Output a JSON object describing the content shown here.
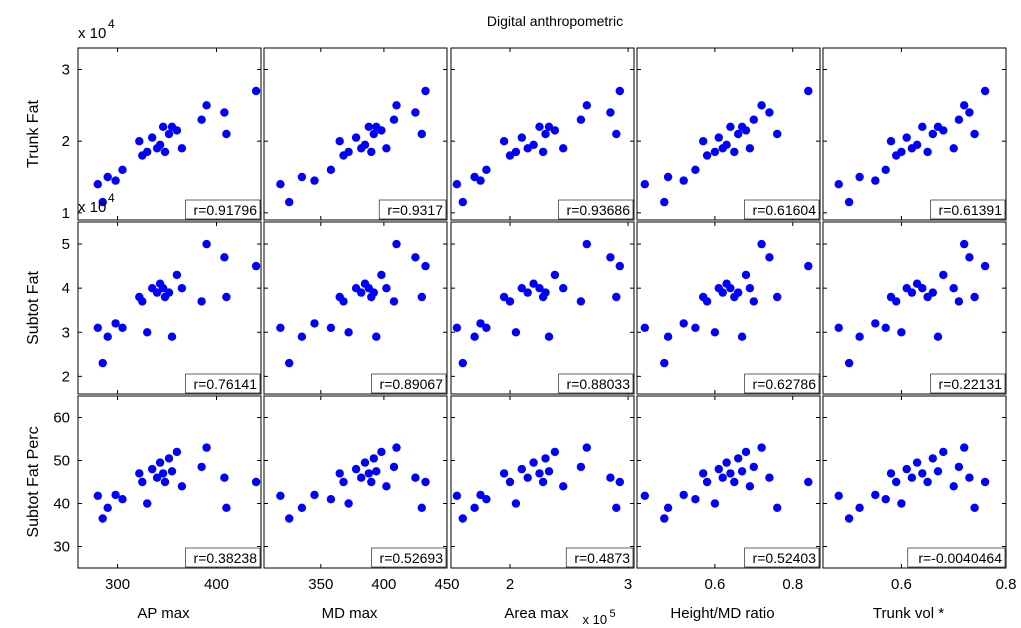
{
  "title": "Digital anthropometric",
  "colors": {
    "marker": "#0000ff",
    "axes": "#000000",
    "background": "#ffffff"
  },
  "chart_data": {
    "type": "scatter",
    "grid": false,
    "legend": "none",
    "rows": [
      {
        "ylabel": "Trunk Fat",
        "ylim": [
          0.9,
          3.3
        ],
        "yticks": [
          "1",
          "2",
          "3"
        ],
        "ytick_values": [
          1,
          2,
          3
        ],
        "exponent": "4"
      },
      {
        "ylabel": "Subtot Fat",
        "ylim": [
          1.6,
          5.5
        ],
        "yticks": [
          "2",
          "3",
          "4",
          "5"
        ],
        "ytick_values": [
          2,
          3,
          4,
          5
        ],
        "exponent": "4"
      },
      {
        "ylabel": "Subtot Fat Perc",
        "ylim": [
          25,
          65
        ],
        "yticks": [
          "30",
          "40",
          "50",
          "60"
        ],
        "ytick_values": [
          30,
          40,
          50,
          60
        ],
        "exponent": ""
      }
    ],
    "columns": [
      {
        "xlabel": "AP max",
        "xlim": [
          260,
          445
        ],
        "xticks": [
          "300",
          "400"
        ],
        "xtick_values": [
          300,
          400
        ],
        "exponent": "",
        "x": [
          280,
          285,
          290,
          298,
          305,
          322,
          325,
          330,
          335,
          340,
          343,
          346,
          348,
          352,
          355,
          360,
          365,
          385,
          390,
          408,
          410,
          440
        ]
      },
      {
        "xlabel": "MD max",
        "xlim": [
          305,
          450
        ],
        "xticks": [
          "350",
          "400",
          "450"
        ],
        "xtick_values": [
          350,
          400,
          450
        ],
        "exponent": "",
        "x": [
          318,
          325,
          335,
          345,
          358,
          365,
          368,
          372,
          378,
          382,
          385,
          388,
          390,
          392,
          394,
          398,
          402,
          408,
          410,
          425,
          430,
          433
        ]
      },
      {
        "xlabel": "Area max",
        "xlim": [
          1.5,
          3.05
        ],
        "xticks": [
          "2",
          "3"
        ],
        "xtick_values": [
          2,
          3
        ],
        "exponent": "5",
        "x": [
          1.55,
          1.6,
          1.7,
          1.75,
          1.8,
          1.95,
          2.0,
          2.05,
          2.1,
          2.15,
          2.2,
          2.25,
          2.28,
          2.3,
          2.33,
          2.38,
          2.45,
          2.6,
          2.65,
          2.85,
          2.9,
          2.93
        ]
      },
      {
        "xlabel": "Height/MD ratio",
        "xlim": [
          0.4,
          0.87
        ],
        "xticks": [
          "0.6",
          "0.8"
        ],
        "xtick_values": [
          0.6,
          0.8
        ],
        "exponent": "",
        "x": [
          0.42,
          0.47,
          0.48,
          0.52,
          0.55,
          0.57,
          0.58,
          0.6,
          0.61,
          0.62,
          0.63,
          0.64,
          0.65,
          0.66,
          0.67,
          0.68,
          0.69,
          0.7,
          0.72,
          0.74,
          0.76,
          0.84
        ]
      },
      {
        "xlabel": "Trunk vol *",
        "xlim": [
          0.45,
          0.8
        ],
        "xticks": [
          "0.6",
          "0.8"
        ],
        "xtick_values": [
          0.6,
          0.8
        ],
        "exponent": "",
        "x": [
          0.48,
          0.5,
          0.52,
          0.55,
          0.57,
          0.58,
          0.59,
          0.6,
          0.61,
          0.62,
          0.63,
          0.64,
          0.65,
          0.66,
          0.67,
          0.68,
          0.7,
          0.71,
          0.72,
          0.73,
          0.74,
          0.76
        ]
      }
    ],
    "y": [
      [
        1.4,
        1.15,
        1.5,
        1.45,
        1.6,
        2.0,
        1.8,
        1.85,
        2.05,
        1.9,
        1.95,
        2.2,
        1.85,
        2.1,
        2.2,
        2.15,
        1.9,
        2.3,
        2.5,
        2.4,
        2.1,
        2.7
      ],
      [
        3.1,
        2.3,
        2.9,
        3.2,
        3.1,
        3.8,
        3.7,
        3.0,
        4.0,
        3.9,
        4.1,
        4.0,
        3.8,
        3.9,
        2.9,
        4.3,
        4.0,
        3.7,
        5.0,
        4.7,
        3.8,
        4.5
      ],
      [
        41.8,
        36.5,
        39.0,
        42.0,
        41.0,
        47.0,
        45.0,
        40.0,
        48.0,
        46.0,
        49.5,
        47.0,
        45.0,
        50.5,
        47.5,
        52.0,
        44.0,
        48.5,
        53.0,
        46.0,
        39.0,
        45.0
      ]
    ],
    "r": [
      [
        "r=0.91796",
        "r=0.9317",
        "r=0.93686",
        "r=0.61604",
        "r=0.61391"
      ],
      [
        "r=0.76141",
        "r=0.89067",
        "r=0.88033",
        "r=0.62786",
        "r=0.22131"
      ],
      [
        "r=0.38238",
        "r=0.52693",
        "r=0.4873",
        "r=0.52403",
        "r=-0.0040464"
      ]
    ]
  }
}
